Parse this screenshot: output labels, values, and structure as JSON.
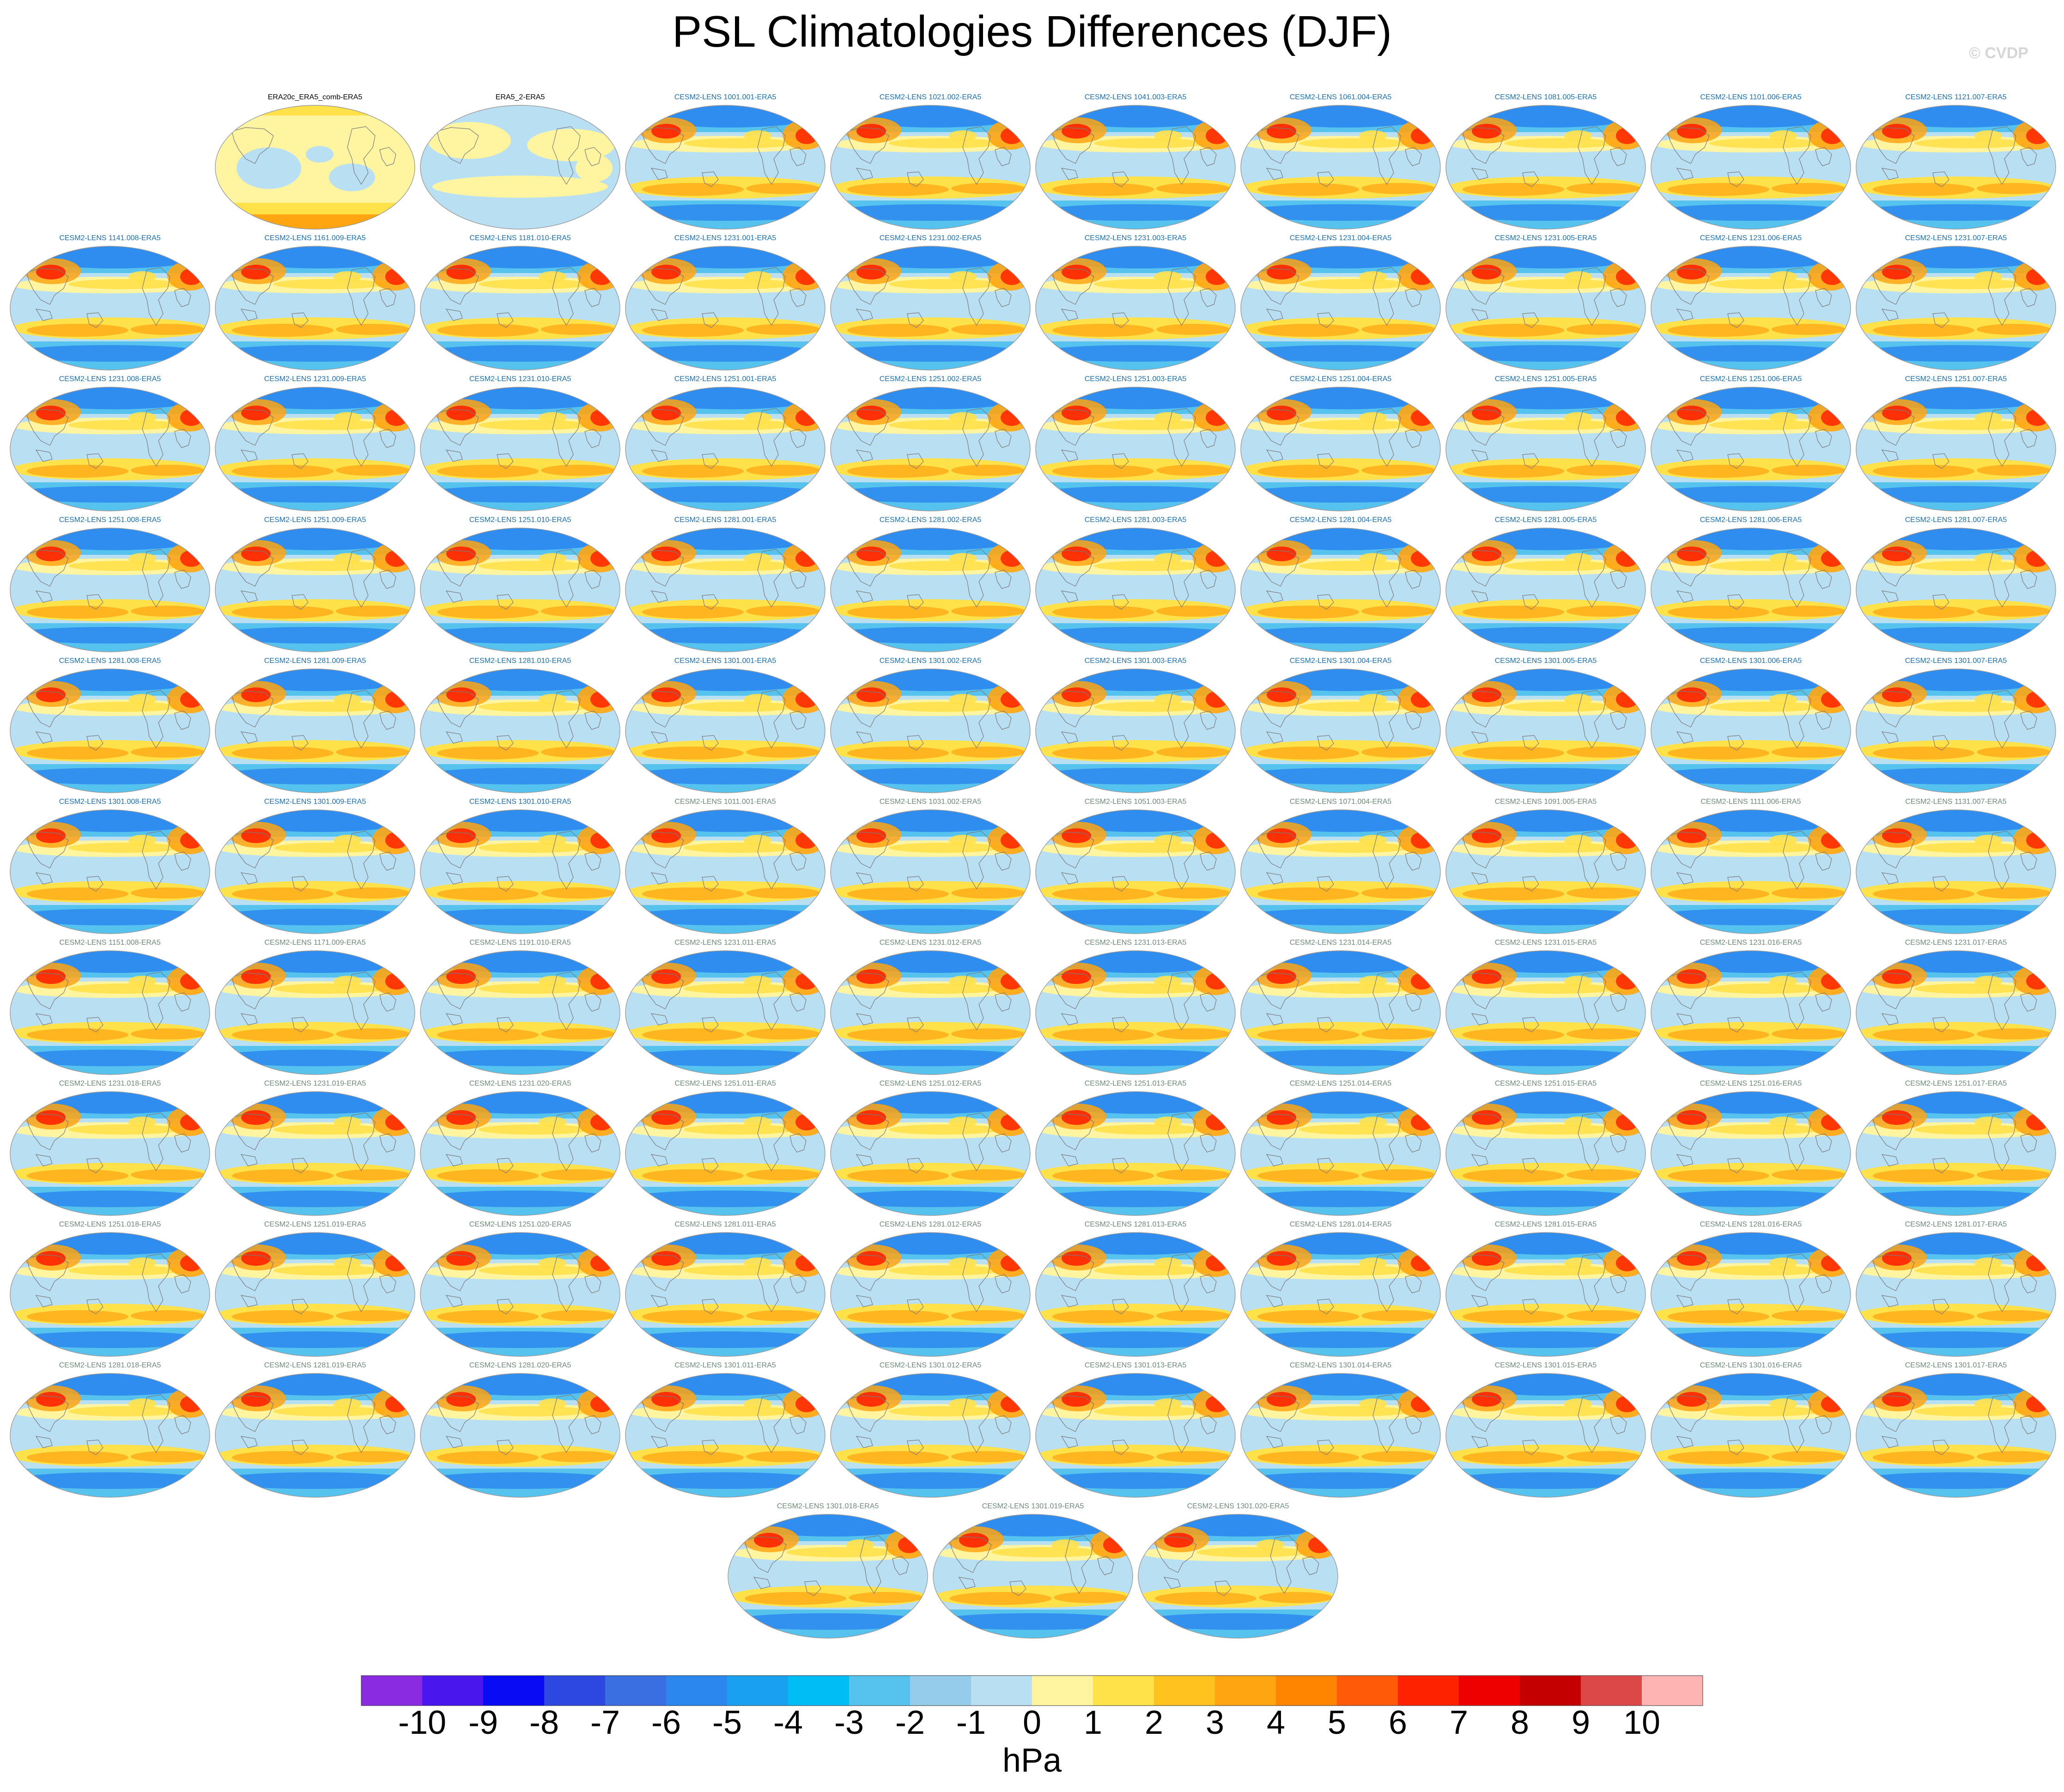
{
  "title": "PSL Climatologies Differences (DJF)",
  "watermark": "© CVDP",
  "units": "hPa",
  "colorbar": {
    "tick_labels": [
      "-10",
      "-9",
      "-8",
      "-7",
      "-6",
      "-5",
      "-4",
      "-3",
      "-2",
      "-1",
      "0",
      "1",
      "2",
      "3",
      "4",
      "5",
      "6",
      "7",
      "8",
      "9",
      "10"
    ],
    "colors": [
      "#8a2be2",
      "#4a16ee",
      "#0a0bf5",
      "#2c48e0",
      "#3a6fe2",
      "#2b87ee",
      "#1aa0f0",
      "#00bdf5",
      "#56c2ee",
      "#96cceb",
      "#b9dff3",
      "#fff5a0",
      "#ffe14a",
      "#ffc21e",
      "#ffa512",
      "#ff8500",
      "#ff5a08",
      "#ff2200",
      "#ee0000",
      "#c40000",
      "#dc4848",
      "#ffb4b4"
    ]
  },
  "map_colors": {
    "ocean_light": "#b9dff3",
    "blue_mid": "#56c2ee",
    "blue_strong": "#2b87ee",
    "yellow_light": "#fff5a0",
    "yellow": "#ffe14a",
    "orange": "#ffa512",
    "red": "#ff2200",
    "coast": "#7a7a7a",
    "label_blue": "#1b6fb0",
    "label_gray": "#6e8a7a",
    "label_black": "#000000"
  },
  "panels": [
    {
      "label": "ERA20c_ERA5_comb-ERA5",
      "style": "obs-a",
      "label_color": "black"
    },
    {
      "label": "ERA5_2-ERA5",
      "style": "obs-b",
      "label_color": "black"
    },
    {
      "label": "CESM2-LENS 1001.001-ERA5",
      "style": "model",
      "label_color": "blue"
    },
    {
      "label": "CESM2-LENS 1021.002-ERA5",
      "style": "model",
      "label_color": "blue"
    },
    {
      "label": "CESM2-LENS 1041.003-ERA5",
      "style": "model",
      "label_color": "blue"
    },
    {
      "label": "CESM2-LENS 1061.004-ERA5",
      "style": "model",
      "label_color": "blue"
    },
    {
      "label": "CESM2-LENS 1081.005-ERA5",
      "style": "model",
      "label_color": "blue"
    },
    {
      "label": "CESM2-LENS 1101.006-ERA5",
      "style": "model",
      "label_color": "blue"
    },
    {
      "label": "CESM2-LENS 1121.007-ERA5",
      "style": "model",
      "label_color": "blue"
    },
    {
      "label": "CESM2-LENS 1141.008-ERA5",
      "style": "model",
      "label_color": "blue"
    },
    {
      "label": "CESM2-LENS 1161.009-ERA5",
      "style": "model",
      "label_color": "blue"
    },
    {
      "label": "CESM2-LENS 1181.010-ERA5",
      "style": "model",
      "label_color": "blue"
    },
    {
      "label": "CESM2-LENS 1231.001-ERA5",
      "style": "model",
      "label_color": "blue"
    },
    {
      "label": "CESM2-LENS 1231.002-ERA5",
      "style": "model",
      "label_color": "blue"
    },
    {
      "label": "CESM2-LENS 1231.003-ERA5",
      "style": "model",
      "label_color": "blue"
    },
    {
      "label": "CESM2-LENS 1231.004-ERA5",
      "style": "model",
      "label_color": "blue"
    },
    {
      "label": "CESM2-LENS 1231.005-ERA5",
      "style": "model",
      "label_color": "blue"
    },
    {
      "label": "CESM2-LENS 1231.006-ERA5",
      "style": "model",
      "label_color": "blue"
    },
    {
      "label": "CESM2-LENS 1231.007-ERA5",
      "style": "model",
      "label_color": "blue"
    },
    {
      "label": "CESM2-LENS 1231.008-ERA5",
      "style": "model",
      "label_color": "blue"
    },
    {
      "label": "CESM2-LENS 1231.009-ERA5",
      "style": "model",
      "label_color": "blue"
    },
    {
      "label": "CESM2-LENS 1231.010-ERA5",
      "style": "model",
      "label_color": "blue"
    },
    {
      "label": "CESM2-LENS 1251.001-ERA5",
      "style": "model",
      "label_color": "blue"
    },
    {
      "label": "CESM2-LENS 1251.002-ERA5",
      "style": "model",
      "label_color": "blue"
    },
    {
      "label": "CESM2-LENS 1251.003-ERA5",
      "style": "model",
      "label_color": "blue"
    },
    {
      "label": "CESM2-LENS 1251.004-ERA5",
      "style": "model",
      "label_color": "blue"
    },
    {
      "label": "CESM2-LENS 1251.005-ERA5",
      "style": "model",
      "label_color": "blue"
    },
    {
      "label": "CESM2-LENS 1251.006-ERA5",
      "style": "model",
      "label_color": "blue"
    },
    {
      "label": "CESM2-LENS 1251.007-ERA5",
      "style": "model",
      "label_color": "blue"
    },
    {
      "label": "CESM2-LENS 1251.008-ERA5",
      "style": "model",
      "label_color": "blue"
    },
    {
      "label": "CESM2-LENS 1251.009-ERA5",
      "style": "model",
      "label_color": "blue"
    },
    {
      "label": "CESM2-LENS 1251.010-ERA5",
      "style": "model",
      "label_color": "blue"
    },
    {
      "label": "CESM2-LENS 1281.001-ERA5",
      "style": "model",
      "label_color": "blue"
    },
    {
      "label": "CESM2-LENS 1281.002-ERA5",
      "style": "model",
      "label_color": "blue"
    },
    {
      "label": "CESM2-LENS 1281.003-ERA5",
      "style": "model",
      "label_color": "blue"
    },
    {
      "label": "CESM2-LENS 1281.004-ERA5",
      "style": "model",
      "label_color": "blue"
    },
    {
      "label": "CESM2-LENS 1281.005-ERA5",
      "style": "model",
      "label_color": "blue"
    },
    {
      "label": "CESM2-LENS 1281.006-ERA5",
      "style": "model",
      "label_color": "blue"
    },
    {
      "label": "CESM2-LENS 1281.007-ERA5",
      "style": "model",
      "label_color": "blue"
    },
    {
      "label": "CESM2-LENS 1281.008-ERA5",
      "style": "model",
      "label_color": "blue"
    },
    {
      "label": "CESM2-LENS 1281.009-ERA5",
      "style": "model",
      "label_color": "blue"
    },
    {
      "label": "CESM2-LENS 1281.010-ERA5",
      "style": "model",
      "label_color": "blue"
    },
    {
      "label": "CESM2-LENS 1301.001-ERA5",
      "style": "model",
      "label_color": "blue"
    },
    {
      "label": "CESM2-LENS 1301.002-ERA5",
      "style": "model",
      "label_color": "blue"
    },
    {
      "label": "CESM2-LENS 1301.003-ERA5",
      "style": "model",
      "label_color": "blue"
    },
    {
      "label": "CESM2-LENS 1301.004-ERA5",
      "style": "model",
      "label_color": "blue"
    },
    {
      "label": "CESM2-LENS 1301.005-ERA5",
      "style": "model",
      "label_color": "blue"
    },
    {
      "label": "CESM2-LENS 1301.006-ERA5",
      "style": "model",
      "label_color": "blue"
    },
    {
      "label": "CESM2-LENS 1301.007-ERA5",
      "style": "model",
      "label_color": "blue"
    },
    {
      "label": "CESM2-LENS 1301.008-ERA5",
      "style": "model",
      "label_color": "blue"
    },
    {
      "label": "CESM2-LENS 1301.009-ERA5",
      "style": "model",
      "label_color": "blue"
    },
    {
      "label": "CESM2-LENS 1301.010-ERA5",
      "style": "model",
      "label_color": "blue"
    },
    {
      "label": "CESM2-LENS 1011.001-ERA5",
      "style": "model",
      "label_color": "gray"
    },
    {
      "label": "CESM2-LENS 1031.002-ERA5",
      "style": "model",
      "label_color": "gray"
    },
    {
      "label": "CESM2-LENS 1051.003-ERA5",
      "style": "model",
      "label_color": "gray"
    },
    {
      "label": "CESM2-LENS 1071.004-ERA5",
      "style": "model",
      "label_color": "gray"
    },
    {
      "label": "CESM2-LENS 1091.005-ERA5",
      "style": "model",
      "label_color": "gray"
    },
    {
      "label": "CESM2-LENS 1111.006-ERA5",
      "style": "model",
      "label_color": "gray"
    },
    {
      "label": "CESM2-LENS 1131.007-ERA5",
      "style": "model",
      "label_color": "gray"
    },
    {
      "label": "CESM2-LENS 1151.008-ERA5",
      "style": "model",
      "label_color": "gray"
    },
    {
      "label": "CESM2-LENS 1171.009-ERA5",
      "style": "model",
      "label_color": "gray"
    },
    {
      "label": "CESM2-LENS 1191.010-ERA5",
      "style": "model",
      "label_color": "gray"
    },
    {
      "label": "CESM2-LENS 1231.011-ERA5",
      "style": "model",
      "label_color": "gray"
    },
    {
      "label": "CESM2-LENS 1231.012-ERA5",
      "style": "model",
      "label_color": "gray"
    },
    {
      "label": "CESM2-LENS 1231.013-ERA5",
      "style": "model",
      "label_color": "gray"
    },
    {
      "label": "CESM2-LENS 1231.014-ERA5",
      "style": "model",
      "label_color": "gray"
    },
    {
      "label": "CESM2-LENS 1231.015-ERA5",
      "style": "model",
      "label_color": "gray"
    },
    {
      "label": "CESM2-LENS 1231.016-ERA5",
      "style": "model",
      "label_color": "gray"
    },
    {
      "label": "CESM2-LENS 1231.017-ERA5",
      "style": "model",
      "label_color": "gray"
    },
    {
      "label": "CESM2-LENS 1231.018-ERA5",
      "style": "model",
      "label_color": "gray"
    },
    {
      "label": "CESM2-LENS 1231.019-ERA5",
      "style": "model",
      "label_color": "gray"
    },
    {
      "label": "CESM2-LENS 1231.020-ERA5",
      "style": "model",
      "label_color": "gray"
    },
    {
      "label": "CESM2-LENS 1251.011-ERA5",
      "style": "model",
      "label_color": "gray"
    },
    {
      "label": "CESM2-LENS 1251.012-ERA5",
      "style": "model",
      "label_color": "gray"
    },
    {
      "label": "CESM2-LENS 1251.013-ERA5",
      "style": "model",
      "label_color": "gray"
    },
    {
      "label": "CESM2-LENS 1251.014-ERA5",
      "style": "model",
      "label_color": "gray"
    },
    {
      "label": "CESM2-LENS 1251.015-ERA5",
      "style": "model",
      "label_color": "gray"
    },
    {
      "label": "CESM2-LENS 1251.016-ERA5",
      "style": "model",
      "label_color": "gray"
    },
    {
      "label": "CESM2-LENS 1251.017-ERA5",
      "style": "model",
      "label_color": "gray"
    },
    {
      "label": "CESM2-LENS 1251.018-ERA5",
      "style": "model",
      "label_color": "gray"
    },
    {
      "label": "CESM2-LENS 1251.019-ERA5",
      "style": "model",
      "label_color": "gray"
    },
    {
      "label": "CESM2-LENS 1251.020-ERA5",
      "style": "model",
      "label_color": "gray"
    },
    {
      "label": "CESM2-LENS 1281.011-ERA5",
      "style": "model",
      "label_color": "gray"
    },
    {
      "label": "CESM2-LENS 1281.012-ERA5",
      "style": "model",
      "label_color": "gray"
    },
    {
      "label": "CESM2-LENS 1281.013-ERA5",
      "style": "model",
      "label_color": "gray"
    },
    {
      "label": "CESM2-LENS 1281.014-ERA5",
      "style": "model",
      "label_color": "gray"
    },
    {
      "label": "CESM2-LENS 1281.015-ERA5",
      "style": "model",
      "label_color": "gray"
    },
    {
      "label": "CESM2-LENS 1281.016-ERA5",
      "style": "model",
      "label_color": "gray"
    },
    {
      "label": "CESM2-LENS 1281.017-ERA5",
      "style": "model",
      "label_color": "gray"
    },
    {
      "label": "CESM2-LENS 1281.018-ERA5",
      "style": "model",
      "label_color": "gray"
    },
    {
      "label": "CESM2-LENS 1281.019-ERA5",
      "style": "model",
      "label_color": "gray"
    },
    {
      "label": "CESM2-LENS 1281.020-ERA5",
      "style": "model",
      "label_color": "gray"
    },
    {
      "label": "CESM2-LENS 1301.011-ERA5",
      "style": "model",
      "label_color": "gray"
    },
    {
      "label": "CESM2-LENS 1301.012-ERA5",
      "style": "model",
      "label_color": "gray"
    },
    {
      "label": "CESM2-LENS 1301.013-ERA5",
      "style": "model",
      "label_color": "gray"
    },
    {
      "label": "CESM2-LENS 1301.014-ERA5",
      "style": "model",
      "label_color": "gray"
    },
    {
      "label": "CESM2-LENS 1301.015-ERA5",
      "style": "model",
      "label_color": "gray"
    },
    {
      "label": "CESM2-LENS 1301.016-ERA5",
      "style": "model",
      "label_color": "gray"
    },
    {
      "label": "CESM2-LENS 1301.017-ERA5",
      "style": "model",
      "label_color": "gray"
    },
    {
      "label": "CESM2-LENS 1301.018-ERA5",
      "style": "model",
      "label_color": "gray"
    },
    {
      "label": "CESM2-LENS 1301.019-ERA5",
      "style": "model",
      "label_color": "gray"
    },
    {
      "label": "CESM2-LENS 1301.020-ERA5",
      "style": "model",
      "label_color": "gray"
    }
  ]
}
